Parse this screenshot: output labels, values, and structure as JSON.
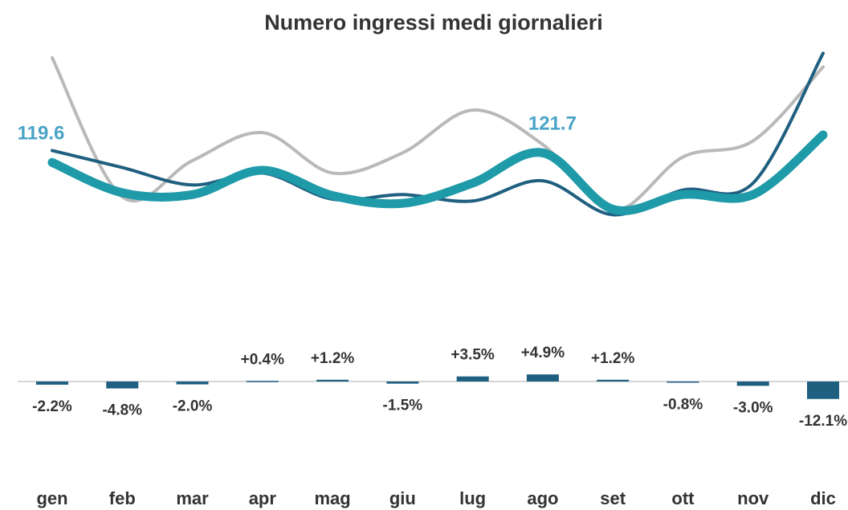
{
  "chart_data": [
    {
      "type": "line",
      "title": "Numero ingressi medi giornalieri",
      "categories": [
        "gen",
        "feb",
        "mar",
        "apr",
        "mag",
        "giu",
        "lug",
        "ago",
        "set",
        "ott",
        "nov",
        "dic"
      ],
      "ylim": [
        71,
        144.5
      ],
      "series": [
        {
          "color": "#1e9aa8",
          "values": [
            119.6,
            113.0,
            112.6,
            117.9,
            112.4,
            110.7,
            115.1,
            121.7,
            109.4,
            112.6,
            112.6,
            125.6
          ],
          "value_labels": [
            "119.6",
            null,
            null,
            null,
            null,
            null,
            null,
            "121.7",
            null,
            null,
            null,
            null
          ]
        },
        {
          "color": "#1f5f80",
          "values": [
            122.2,
            118.5,
            114.7,
            117.3,
            111.6,
            112.6,
            111.2,
            115.6,
            108.2,
            113.6,
            115.1,
            143.4
          ]
        },
        {
          "color": "#b9b9b9",
          "values": [
            142.4,
            112.1,
            120.0,
            126.1,
            117.3,
            121.7,
            131.0,
            123.5,
            109.1,
            120.8,
            124.3,
            140.4
          ]
        }
      ]
    },
    {
      "type": "bar",
      "color": "#1f5f80",
      "ylim": [
        -25,
        25
      ],
      "values": [
        -2.2,
        -4.8,
        -2.0,
        0.4,
        1.2,
        -1.5,
        3.5,
        4.9,
        1.2,
        -0.8,
        -3.0,
        -12.1
      ],
      "value_labels": [
        "-2.2%",
        "-4.8%",
        "-2.0%",
        "+0.4%",
        "+1.2%",
        "-1.5%",
        "+3.5%",
        "+4.9%",
        "+1.2%",
        "-0.8%",
        "-3.0%",
        "-12.1%"
      ]
    }
  ]
}
